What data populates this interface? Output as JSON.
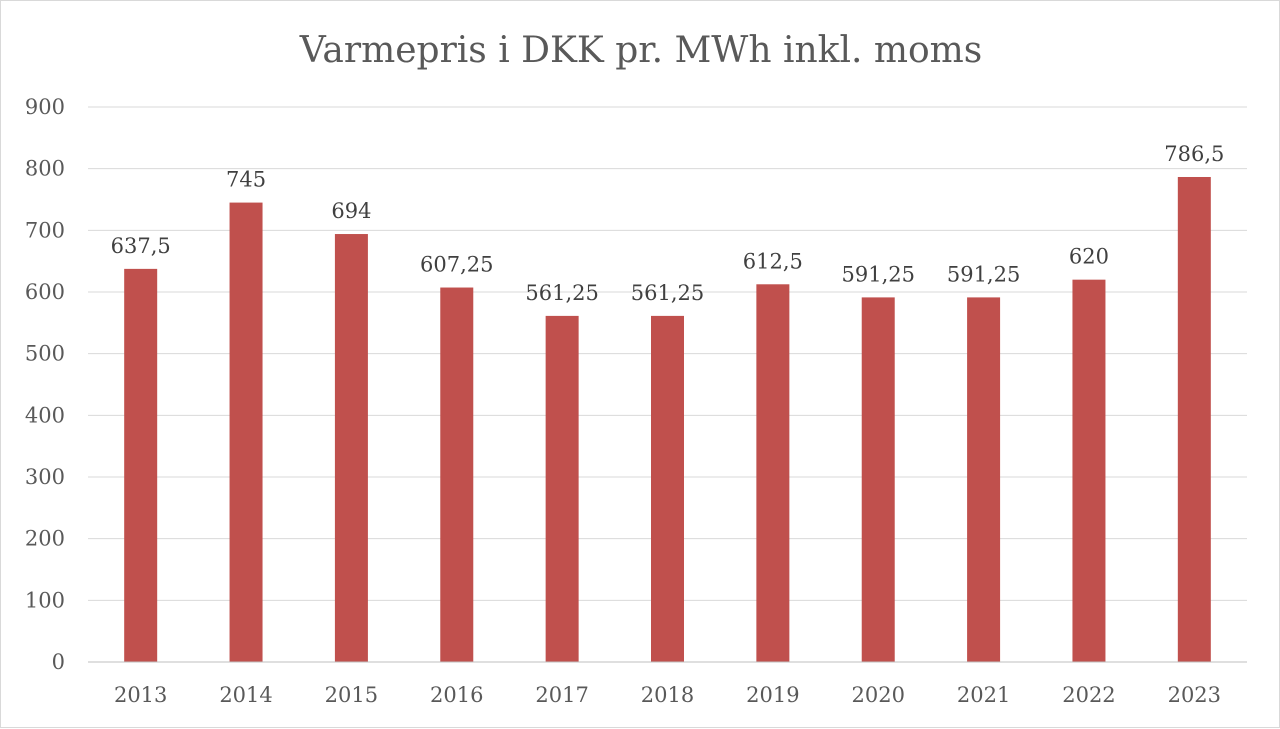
{
  "chart_data": {
    "type": "bar",
    "title": "Varmepris i DKK pr. MWh inkl. moms",
    "categories": [
      "2013",
      "2014",
      "2015",
      "2016",
      "2017",
      "2018",
      "2019",
      "2020",
      "2021",
      "2022",
      "2023"
    ],
    "values": [
      637.5,
      745,
      694,
      607.25,
      561.25,
      561.25,
      612.5,
      591.25,
      591.25,
      620,
      786.5
    ],
    "data_labels": [
      "637,5",
      "745",
      "694",
      "607,25",
      "561,25",
      "561,25",
      "612,5",
      "591,25",
      "591,25",
      "620",
      "786,5"
    ],
    "y_ticks": [
      "0",
      "100",
      "200",
      "300",
      "400",
      "500",
      "600",
      "700",
      "800",
      "900"
    ],
    "ylim": [
      0,
      900
    ],
    "grid": true,
    "legend": "none",
    "bar_color": "#c0504d"
  }
}
